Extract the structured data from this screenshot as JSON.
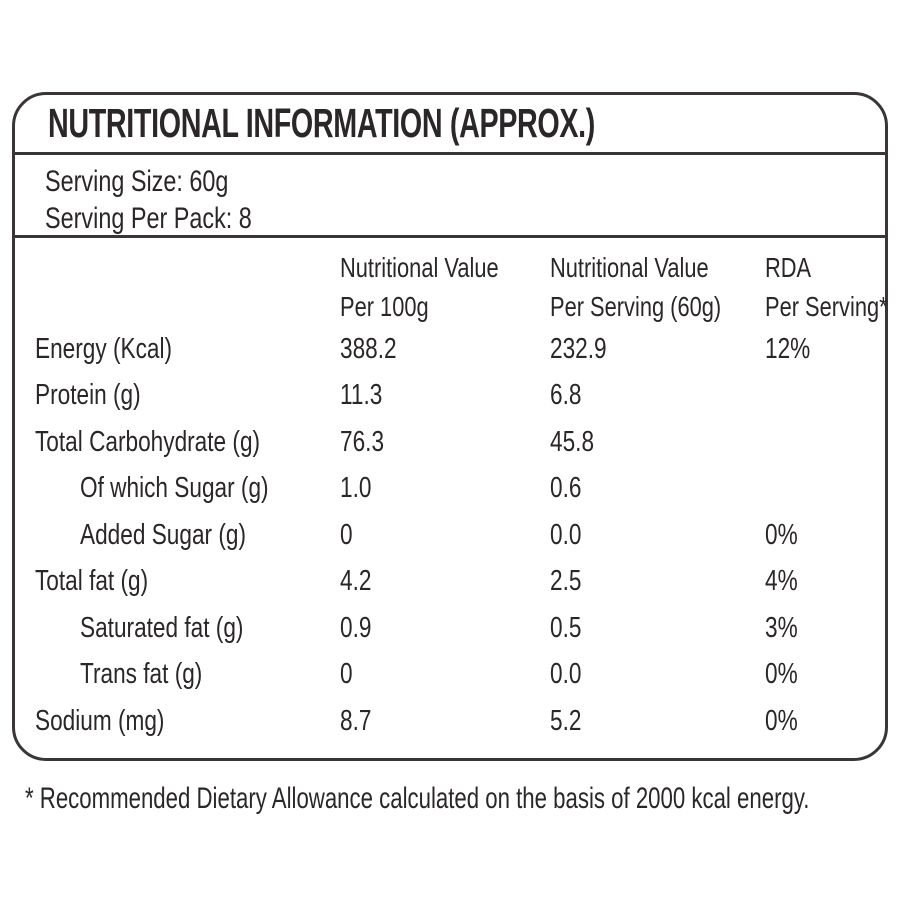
{
  "title": "NUTRITIONAL INFORMATION (APPROX.)",
  "serving_info": {
    "serving_size": "Serving Size: 60g",
    "serving_per_pack": "Serving Per Pack: 8"
  },
  "table": {
    "columns": [
      {
        "line1": "Nutritional Value",
        "line2": "Per 100g"
      },
      {
        "line1": "Nutritional Value",
        "line2": "Per Serving (60g)"
      },
      {
        "line1": "RDA",
        "line2": "Per Serving*"
      }
    ],
    "rows": [
      {
        "label": "Energy (Kcal)",
        "per_100g": "388.2",
        "per_serving": "232.9",
        "rda": "12%",
        "indent": false
      },
      {
        "label": "Protein (g)",
        "per_100g": "11.3",
        "per_serving": "6.8",
        "rda": "",
        "indent": false
      },
      {
        "label": "Total Carbohydrate (g)",
        "per_100g": "76.3",
        "per_serving": "45.8",
        "rda": "",
        "indent": false
      },
      {
        "label": "Of which Sugar (g)",
        "per_100g": "1.0",
        "per_serving": "0.6",
        "rda": "",
        "indent": true
      },
      {
        "label": "Added Sugar (g)",
        "per_100g": "0",
        "per_serving": "0.0",
        "rda": "0%",
        "indent": true
      },
      {
        "label": "Total fat (g)",
        "per_100g": "4.2",
        "per_serving": "2.5",
        "rda": "4%",
        "indent": false
      },
      {
        "label": "Saturated fat (g)",
        "per_100g": "0.9",
        "per_serving": "0.5",
        "rda": "3%",
        "indent": true
      },
      {
        "label": "Trans fat (g)",
        "per_100g": "0",
        "per_serving": "0.0",
        "rda": "0%",
        "indent": true
      },
      {
        "label": "Sodium (mg)",
        "per_100g": "8.7",
        "per_serving": "5.2",
        "rda": "0%",
        "indent": false
      }
    ]
  },
  "footnote": "* Recommended Dietary Allowance calculated on the basis of 2000 kcal energy.",
  "colors": {
    "text": "#2b2728",
    "border": "#3a3637",
    "background": "#ffffff"
  }
}
